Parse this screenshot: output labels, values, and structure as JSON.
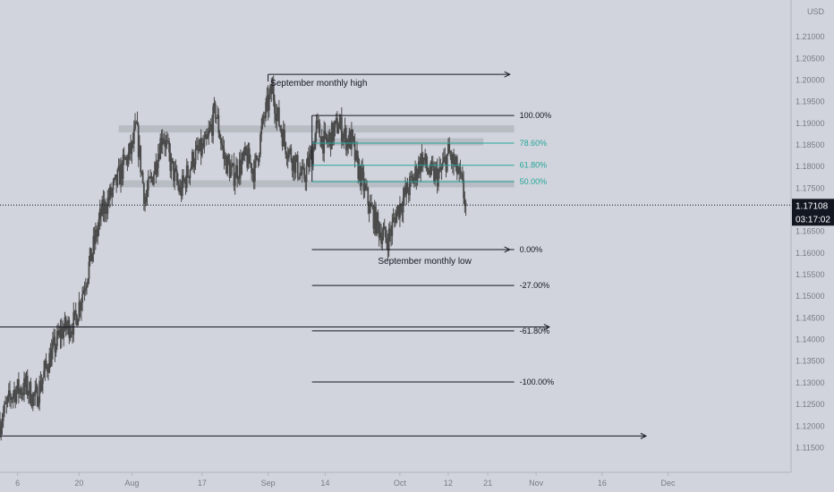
{
  "colors": {
    "background": "#d1d4dc",
    "candle": "#4a4a4a",
    "zone": "#b4b7be",
    "fib_teal": "#26a69a",
    "fib_black": "#131722",
    "axis_text": "#787b86",
    "price_label_bg": "#131722",
    "price_label_text": "#ffffff"
  },
  "axis": {
    "currency": "USD",
    "price_label": "1.17108",
    "countdown": "03:17:02"
  },
  "chart_data": {
    "type": "candlestick",
    "ylim": [
      1.1093,
      1.2185
    ],
    "yticks": [
      1.115,
      1.12,
      1.125,
      1.13,
      1.135,
      1.14,
      1.145,
      1.15,
      1.155,
      1.16,
      1.165,
      1.17,
      1.175,
      1.18,
      1.185,
      1.19,
      1.195,
      1.2,
      1.205,
      1.21
    ],
    "ytick_labels": [
      "1.11500",
      "1.12000",
      "1.12500",
      "1.13000",
      "1.13500",
      "1.14000",
      "1.14500",
      "1.15000",
      "1.15500",
      "1.16000",
      "1.16500",
      "1.17000",
      "1.17500",
      "1.18000",
      "1.18500",
      "1.19000",
      "1.19500",
      "1.20000",
      "1.20500",
      "1.21000"
    ],
    "xlim_days": [
      0,
      180
    ],
    "xticks": [
      {
        "day": 4,
        "label": "6"
      },
      {
        "day": 18,
        "label": "20"
      },
      {
        "day": 30,
        "label": "Aug"
      },
      {
        "day": 46,
        "label": "17"
      },
      {
        "day": 61,
        "label": "Sep"
      },
      {
        "day": 74,
        "label": "14"
      },
      {
        "day": 91,
        "label": "Oct"
      },
      {
        "day": 102,
        "label": "12"
      },
      {
        "day": 111,
        "label": "21"
      },
      {
        "day": 122,
        "label": "Nov"
      },
      {
        "day": 137,
        "label": "16"
      },
      {
        "day": 152,
        "label": "Dec"
      }
    ],
    "price_path": [
      [
        0,
        1.121
      ],
      [
        3,
        1.128
      ],
      [
        6,
        1.129
      ],
      [
        8,
        1.126
      ],
      [
        11,
        1.135
      ],
      [
        14,
        1.142
      ],
      [
        17,
        1.144
      ],
      [
        20,
        1.156
      ],
      [
        23,
        1.169
      ],
      [
        26,
        1.175
      ],
      [
        28,
        1.18
      ],
      [
        30,
        1.184
      ],
      [
        31,
        1.189
      ],
      [
        33,
        1.172
      ],
      [
        35,
        1.179
      ],
      [
        37,
        1.188
      ],
      [
        39,
        1.18
      ],
      [
        41,
        1.174
      ],
      [
        44,
        1.182
      ],
      [
        47,
        1.185
      ],
      [
        49,
        1.193
      ],
      [
        51,
        1.182
      ],
      [
        53,
        1.178
      ],
      [
        56,
        1.182
      ],
      [
        58,
        1.179
      ],
      [
        60,
        1.191
      ],
      [
        62,
        1.198
      ],
      [
        63,
        1.192
      ],
      [
        65,
        1.185
      ],
      [
        67,
        1.181
      ],
      [
        69,
        1.177
      ],
      [
        71,
        1.183
      ],
      [
        72,
        1.189
      ],
      [
        74,
        1.185
      ],
      [
        76,
        1.188
      ],
      [
        77,
        1.19
      ],
      [
        79,
        1.186
      ],
      [
        80,
        1.186
      ],
      [
        81,
        1.181
      ],
      [
        82,
        1.178
      ],
      [
        84,
        1.171
      ],
      [
        86,
        1.166
      ],
      [
        88,
        1.163
      ],
      [
        89,
        1.165
      ],
      [
        90,
        1.169
      ],
      [
        92,
        1.173
      ],
      [
        94,
        1.177
      ],
      [
        96,
        1.182
      ],
      [
        98,
        1.178
      ],
      [
        100,
        1.178
      ],
      [
        102,
        1.183
      ],
      [
        104,
        1.179
      ],
      [
        105,
        1.176
      ],
      [
        106,
        1.171
      ]
    ],
    "zones": [
      {
        "from_day": 27,
        "to_day": 117,
        "price": 1.1887
      },
      {
        "from_day": 71,
        "to_day": 110,
        "price": 1.1857
      },
      {
        "from_day": 27,
        "to_day": 117,
        "price": 1.176
      }
    ],
    "fib_levels": [
      {
        "label": "100.00%",
        "price": 1.1918,
        "color": "#131722"
      },
      {
        "label": "78.60%",
        "price": 1.1854,
        "color": "#26a69a"
      },
      {
        "label": "61.80%",
        "price": 1.1803,
        "color": "#26a69a"
      },
      {
        "label": "50.00%",
        "price": 1.1765,
        "color": "#26a69a"
      },
      {
        "label": "0.00%",
        "price": 1.1608,
        "color": "#131722"
      },
      {
        "label": "-27.00%",
        "price": 1.1525,
        "color": "#131722"
      },
      {
        "label": "-61.80%",
        "price": 1.142,
        "color": "#131722"
      },
      {
        "label": "-100.00%",
        "price": 1.1302,
        "color": "#131722"
      }
    ],
    "fib_from_day": 71,
    "fib_to_day": 117,
    "horizontal_rays": [
      {
        "price": 1.1429,
        "from_day": 0,
        "to_day": 125
      },
      {
        "price": 1.1177,
        "from_day": 0,
        "to_day": 147
      }
    ],
    "annotations": [
      {
        "text": "September monthly high",
        "price": 1.2013,
        "from_day": 61,
        "to_day": 116,
        "text_day": 61.5,
        "text_price": 1.2007
      },
      {
        "text": "September monthly low",
        "price": 1.1608,
        "from_day": 71,
        "to_day": 116,
        "text_day": 86,
        "text_price": 1.1596
      }
    ],
    "current_price": 1.17108
  }
}
